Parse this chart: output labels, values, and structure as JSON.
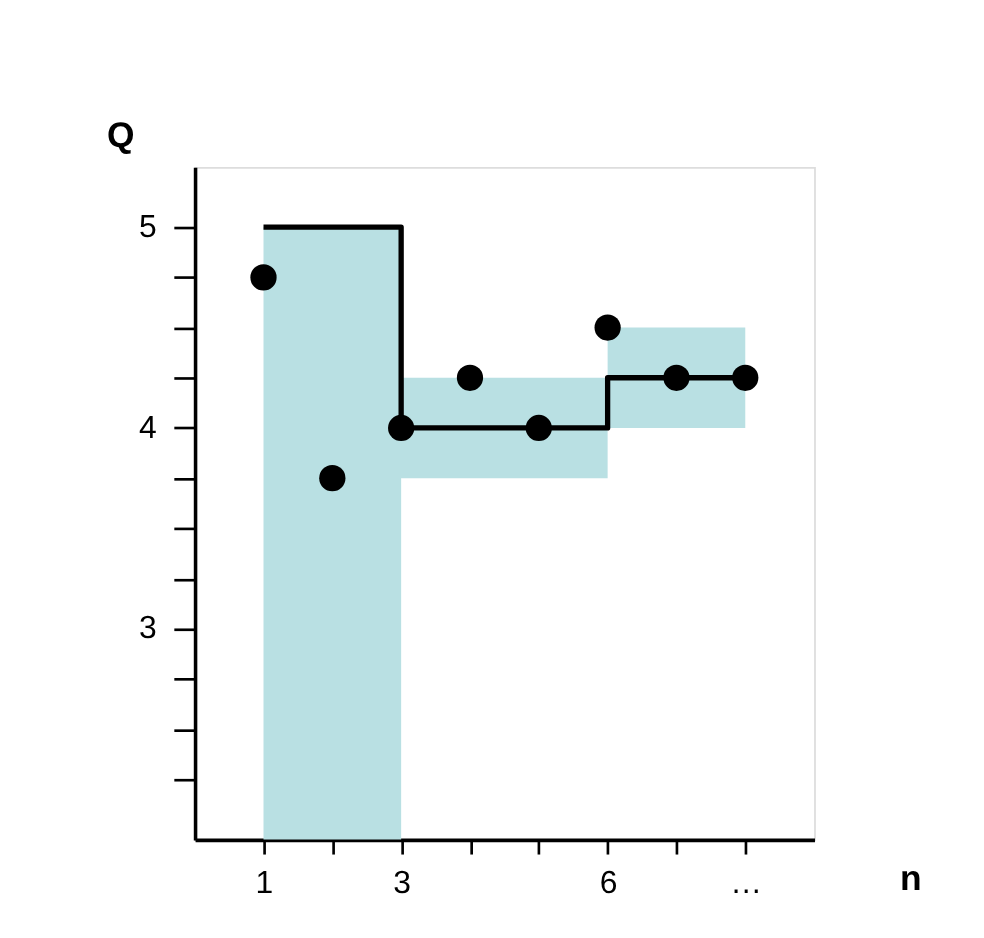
{
  "chart_data": {
    "type": "step",
    "xlabel": "n",
    "ylabel": "Q",
    "xlim": [
      0,
      9
    ],
    "ylim": [
      1.95,
      5.3
    ],
    "xticks": [
      1,
      {
        "value": 2,
        "label": null
      },
      3,
      {
        "value": 4,
        "label": null
      },
      {
        "value": 5,
        "label": null
      },
      6,
      {
        "value": 7,
        "label": null
      },
      {
        "value": 8,
        "label": "…"
      }
    ],
    "yticks": [
      {
        "value": 2.25,
        "label": null
      },
      {
        "value": 2.5,
        "label": null
      },
      {
        "value": 2.75,
        "label": null
      },
      3,
      {
        "value": 3.25,
        "label": null
      },
      {
        "value": 3.5,
        "label": null
      },
      {
        "value": 3.75,
        "label": null
      },
      4,
      {
        "value": 4.25,
        "label": null
      },
      {
        "value": 4.5,
        "label": null
      },
      {
        "value": 4.75,
        "label": null
      },
      5
    ],
    "grid": false,
    "series": [
      {
        "type": "step",
        "color": "#000000",
        "x": [
          1,
          3,
          6,
          8
        ],
        "values": [
          5,
          4,
          4.25,
          4.25
        ],
        "lower": [
          1.95,
          3.75,
          4,
          4
        ],
        "upper": [
          5,
          4.25,
          4.5,
          4.5
        ],
        "marker": "none",
        "line_style": "solid"
      },
      {
        "type": "scatter",
        "color": "#000000",
        "x": [
          1,
          2,
          3,
          4,
          5,
          6,
          7,
          8
        ],
        "values": [
          4.75,
          3.75,
          4,
          4.25,
          4,
          4.5,
          4.25,
          4.25
        ],
        "marker": "circle"
      }
    ]
  }
}
